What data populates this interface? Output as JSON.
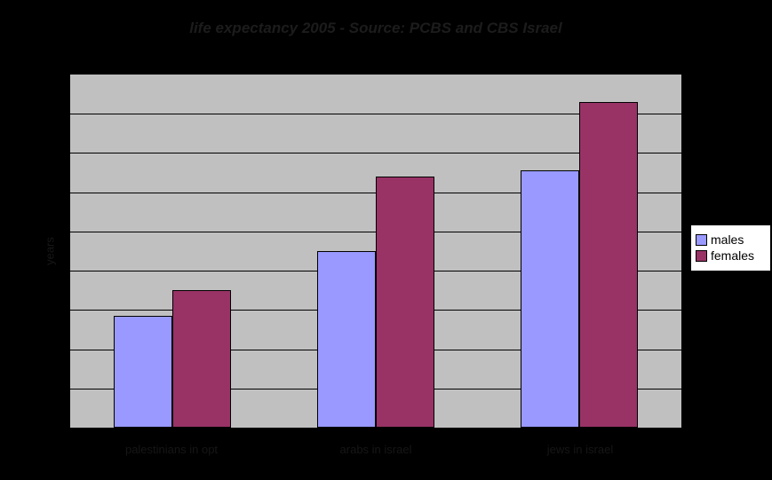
{
  "window": {
    "background_color": "#000000"
  },
  "chart_data": {
    "type": "bar",
    "title": "life expectancy 2005 - Source: PCBS and CBS Israel",
    "ylabel": "years",
    "xlabel": "",
    "categories": [
      "palestinians in opt",
      "arabs in israel",
      "jews in israel"
    ],
    "series": [
      {
        "name": "males",
        "color": "#9999FF",
        "values": [
          71.7,
          75.0,
          79.1
        ]
      },
      {
        "name": "females",
        "color": "#993366",
        "values": [
          73.0,
          78.8,
          82.6
        ]
      }
    ],
    "ylim": [
      66,
      84
    ],
    "gridline_step": 2,
    "grid": "horizontal",
    "y_tick_labels_visible": false,
    "legend_position": "right",
    "plot_background": "#C0C0C0",
    "page_background": "#000000",
    "bar_border_color": "#000000",
    "legend_background": "#FFFFFF"
  }
}
